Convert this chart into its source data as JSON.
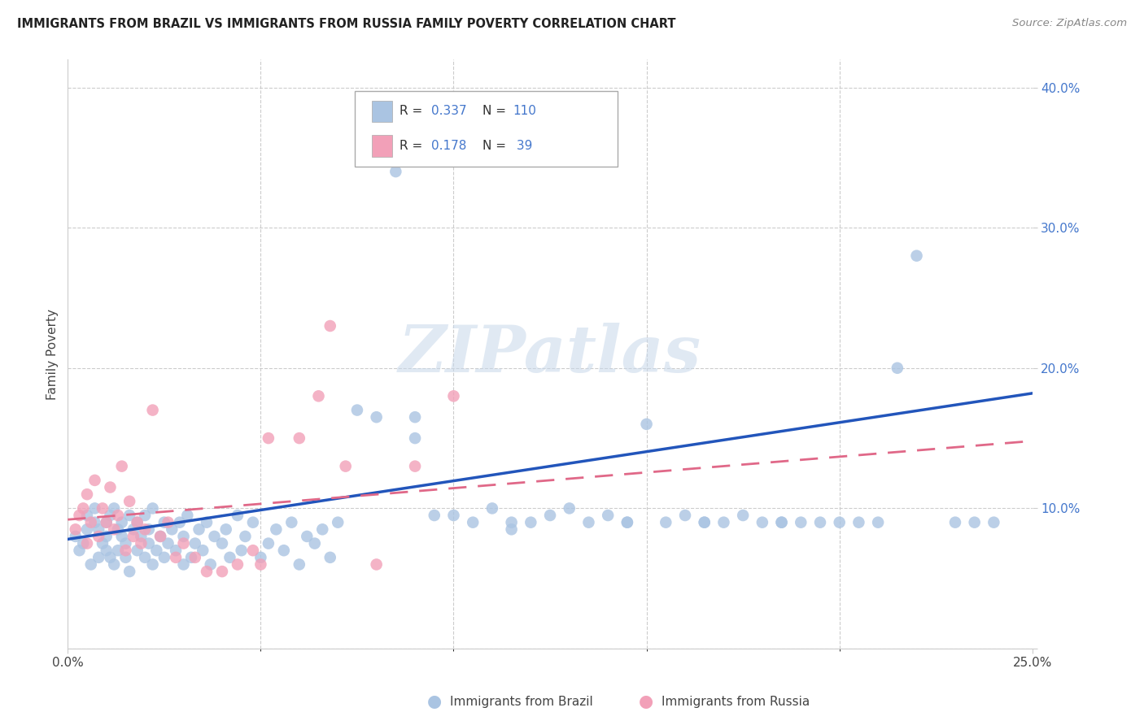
{
  "title": "IMMIGRANTS FROM BRAZIL VS IMMIGRANTS FROM RUSSIA FAMILY POVERTY CORRELATION CHART",
  "source": "Source: ZipAtlas.com",
  "ylabel": "Family Poverty",
  "x_min": 0.0,
  "x_max": 0.25,
  "y_min": 0.0,
  "y_max": 0.42,
  "brazil_color": "#aac4e2",
  "russia_color": "#f2a0b8",
  "brazil_line_color": "#2255bb",
  "russia_line_color": "#e06888",
  "brazil_R": 0.337,
  "brazil_N": 110,
  "russia_R": 0.178,
  "russia_N": 39,
  "legend_label_brazil": "Immigrants from Brazil",
  "legend_label_russia": "Immigrants from Russia",
  "watermark": "ZIPatlas",
  "brazil_x": [
    0.002,
    0.003,
    0.004,
    0.005,
    0.005,
    0.006,
    0.007,
    0.007,
    0.008,
    0.008,
    0.009,
    0.01,
    0.01,
    0.01,
    0.011,
    0.011,
    0.012,
    0.012,
    0.013,
    0.013,
    0.014,
    0.014,
    0.015,
    0.015,
    0.016,
    0.016,
    0.017,
    0.018,
    0.018,
    0.019,
    0.02,
    0.02,
    0.021,
    0.021,
    0.022,
    0.022,
    0.023,
    0.024,
    0.025,
    0.025,
    0.026,
    0.027,
    0.028,
    0.029,
    0.03,
    0.03,
    0.031,
    0.032,
    0.033,
    0.034,
    0.035,
    0.036,
    0.037,
    0.038,
    0.04,
    0.041,
    0.042,
    0.044,
    0.045,
    0.046,
    0.048,
    0.05,
    0.052,
    0.054,
    0.056,
    0.058,
    0.06,
    0.062,
    0.064,
    0.066,
    0.068,
    0.07,
    0.075,
    0.08,
    0.085,
    0.09,
    0.095,
    0.1,
    0.105,
    0.11,
    0.115,
    0.12,
    0.125,
    0.13,
    0.135,
    0.14,
    0.145,
    0.15,
    0.155,
    0.16,
    0.165,
    0.17,
    0.175,
    0.18,
    0.185,
    0.19,
    0.195,
    0.2,
    0.21,
    0.215,
    0.09,
    0.22,
    0.23,
    0.235,
    0.24,
    0.115,
    0.145,
    0.165,
    0.185,
    0.205
  ],
  "brazil_y": [
    0.08,
    0.07,
    0.075,
    0.085,
    0.095,
    0.06,
    0.09,
    0.1,
    0.065,
    0.085,
    0.075,
    0.07,
    0.08,
    0.09,
    0.065,
    0.095,
    0.06,
    0.1,
    0.07,
    0.085,
    0.08,
    0.09,
    0.065,
    0.075,
    0.055,
    0.095,
    0.085,
    0.07,
    0.09,
    0.08,
    0.065,
    0.095,
    0.075,
    0.085,
    0.06,
    0.1,
    0.07,
    0.08,
    0.09,
    0.065,
    0.075,
    0.085,
    0.07,
    0.09,
    0.06,
    0.08,
    0.095,
    0.065,
    0.075,
    0.085,
    0.07,
    0.09,
    0.06,
    0.08,
    0.075,
    0.085,
    0.065,
    0.095,
    0.07,
    0.08,
    0.09,
    0.065,
    0.075,
    0.085,
    0.07,
    0.09,
    0.06,
    0.08,
    0.075,
    0.085,
    0.065,
    0.09,
    0.17,
    0.165,
    0.34,
    0.15,
    0.095,
    0.095,
    0.09,
    0.1,
    0.085,
    0.09,
    0.095,
    0.1,
    0.09,
    0.095,
    0.09,
    0.16,
    0.09,
    0.095,
    0.09,
    0.09,
    0.095,
    0.09,
    0.09,
    0.09,
    0.09,
    0.09,
    0.09,
    0.2,
    0.165,
    0.28,
    0.09,
    0.09,
    0.09,
    0.09,
    0.09,
    0.09,
    0.09,
    0.09
  ],
  "russia_x": [
    0.002,
    0.003,
    0.004,
    0.005,
    0.005,
    0.006,
    0.007,
    0.008,
    0.009,
    0.01,
    0.011,
    0.012,
    0.013,
    0.014,
    0.015,
    0.016,
    0.017,
    0.018,
    0.019,
    0.02,
    0.022,
    0.024,
    0.026,
    0.028,
    0.03,
    0.033,
    0.036,
    0.04,
    0.044,
    0.048,
    0.052,
    0.06,
    0.068,
    0.072,
    0.08,
    0.09,
    0.1,
    0.065,
    0.05
  ],
  "russia_y": [
    0.085,
    0.095,
    0.1,
    0.11,
    0.075,
    0.09,
    0.12,
    0.08,
    0.1,
    0.09,
    0.115,
    0.085,
    0.095,
    0.13,
    0.07,
    0.105,
    0.08,
    0.09,
    0.075,
    0.085,
    0.17,
    0.08,
    0.09,
    0.065,
    0.075,
    0.065,
    0.055,
    0.055,
    0.06,
    0.07,
    0.15,
    0.15,
    0.23,
    0.13,
    0.06,
    0.13,
    0.18,
    0.18,
    0.06
  ],
  "brazil_line_x0": 0.0,
  "brazil_line_y0": 0.078,
  "brazil_line_x1": 0.25,
  "brazil_line_y1": 0.182,
  "russia_line_x0": 0.0,
  "russia_line_y0": 0.092,
  "russia_line_x1": 0.25,
  "russia_line_y1": 0.148
}
